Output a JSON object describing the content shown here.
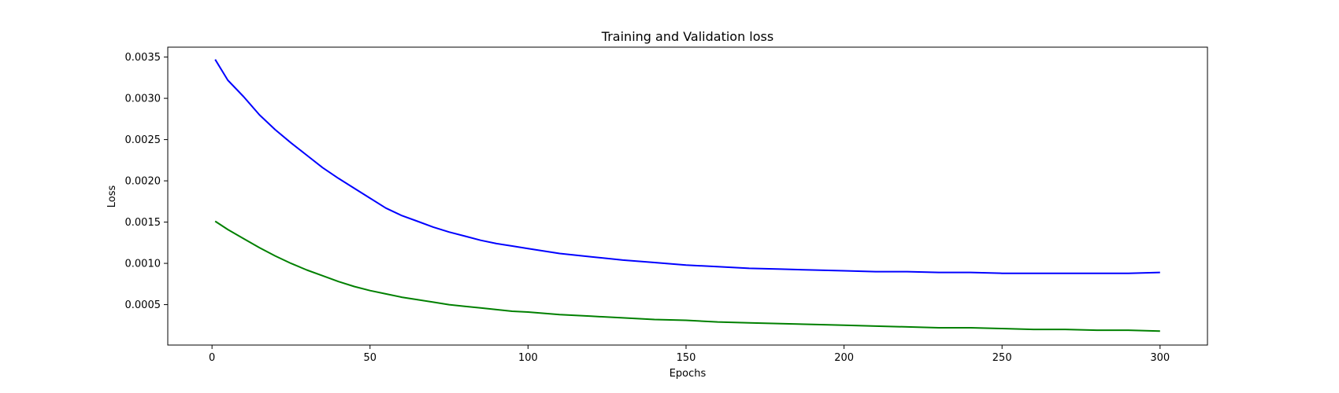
{
  "chart_data": {
    "type": "line",
    "title": "Training and Validation loss",
    "xlabel": "Epochs",
    "ylabel": "Loss",
    "xlim": [
      -14,
      315
    ],
    "ylim": [
      1e-05,
      0.00362
    ],
    "xticks": [
      0,
      50,
      100,
      150,
      200,
      250,
      300
    ],
    "yticks": [
      0.0005,
      0.001,
      0.0015,
      0.002,
      0.0025,
      0.003,
      0.0035
    ],
    "ytick_labels": [
      "0.0005",
      "0.0010",
      "0.0015",
      "0.0020",
      "0.0025",
      "0.0030",
      "0.0035"
    ],
    "grid": false,
    "legend": null,
    "series": [
      {
        "color": "#0000ff",
        "x": [
          1,
          5,
          10,
          15,
          20,
          25,
          30,
          35,
          40,
          45,
          50,
          55,
          60,
          65,
          70,
          75,
          80,
          85,
          90,
          95,
          100,
          110,
          120,
          130,
          140,
          150,
          160,
          170,
          180,
          190,
          200,
          210,
          220,
          230,
          240,
          250,
          260,
          270,
          280,
          290,
          300
        ],
        "values": [
          0.00347,
          0.00322,
          0.00302,
          0.0028,
          0.00262,
          0.00246,
          0.00231,
          0.00216,
          0.00203,
          0.00191,
          0.00179,
          0.00167,
          0.00158,
          0.00151,
          0.00144,
          0.00138,
          0.00133,
          0.00128,
          0.00124,
          0.00121,
          0.00118,
          0.00112,
          0.00108,
          0.00104,
          0.00101,
          0.00098,
          0.00096,
          0.00094,
          0.00093,
          0.00092,
          0.00091,
          0.0009,
          0.0009,
          0.00089,
          0.00089,
          0.00088,
          0.00088,
          0.00088,
          0.00088,
          0.00088,
          0.00089
        ]
      },
      {
        "color": "#008000",
        "x": [
          1,
          5,
          10,
          15,
          20,
          25,
          30,
          35,
          40,
          45,
          50,
          55,
          60,
          65,
          70,
          75,
          80,
          85,
          90,
          95,
          100,
          110,
          120,
          130,
          140,
          150,
          160,
          170,
          180,
          190,
          200,
          210,
          220,
          230,
          240,
          250,
          260,
          270,
          280,
          290,
          300
        ],
        "values": [
          0.00151,
          0.00141,
          0.0013,
          0.00119,
          0.00109,
          0.001,
          0.00092,
          0.00085,
          0.00078,
          0.00072,
          0.00067,
          0.00063,
          0.00059,
          0.00056,
          0.00053,
          0.0005,
          0.00048,
          0.00046,
          0.00044,
          0.00042,
          0.00041,
          0.00038,
          0.00036,
          0.00034,
          0.00032,
          0.00031,
          0.00029,
          0.00028,
          0.00027,
          0.00026,
          0.00025,
          0.00024,
          0.00023,
          0.00022,
          0.00022,
          0.00021,
          0.0002,
          0.0002,
          0.00019,
          0.00019,
          0.00018
        ]
      }
    ]
  }
}
